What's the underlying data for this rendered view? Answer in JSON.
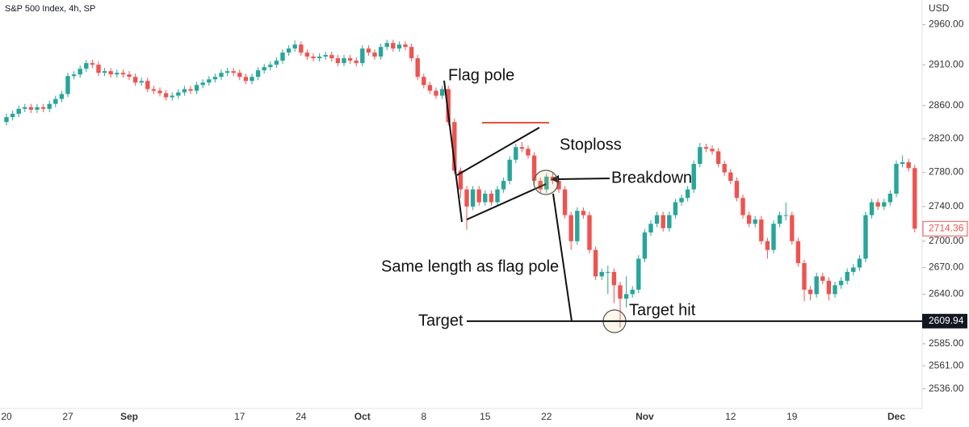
{
  "chart_data": {
    "type": "candlestick",
    "title": "S&P 500 Index, 4h, SP",
    "y_axis_label": "USD",
    "log_scale": true,
    "grid": false,
    "up_color": "#26a69a",
    "down_color": "#ef5350",
    "ylim": [
      2515,
      2991
    ],
    "yticks": [
      {
        "value": 2960,
        "label": "2960.00"
      },
      {
        "value": 2910,
        "label": "2910.00"
      },
      {
        "value": 2860,
        "label": "2860.00"
      },
      {
        "value": 2820,
        "label": "2820.00"
      },
      {
        "value": 2780,
        "label": "2780.00"
      },
      {
        "value": 2740,
        "label": "2740.00"
      },
      {
        "value": 2700,
        "label": "2700.00"
      },
      {
        "value": 2670,
        "label": "2670.00"
      },
      {
        "value": 2640,
        "label": "2640.00"
      },
      {
        "value": 2585,
        "label": "2585.00"
      },
      {
        "value": 2561,
        "label": "2561.00"
      },
      {
        "value": 2536,
        "label": "2536.00"
      }
    ],
    "last_price": {
      "value": 2714.36,
      "label": "2714.36"
    },
    "target_price": {
      "value": 2609.94,
      "label": "2609.94"
    },
    "annotations": {
      "flag_pole": "Flag pole",
      "stoploss": "Stoploss",
      "breakdown": "Breakdown",
      "same_length": "Same length as flag pole",
      "target": "Target",
      "target_hit": "Target hit"
    },
    "categories": [
      "20",
      null,
      null,
      null,
      null,
      null,
      null,
      null,
      null,
      null,
      "27",
      null,
      null,
      null,
      null,
      null,
      null,
      null,
      null,
      null,
      "Sep",
      null,
      null,
      null,
      null,
      null,
      null,
      null,
      null,
      null,
      null,
      null,
      null,
      null,
      null,
      null,
      null,
      null,
      "17",
      null,
      null,
      null,
      null,
      null,
      null,
      null,
      null,
      null,
      "24",
      null,
      null,
      null,
      null,
      null,
      null,
      null,
      null,
      null,
      "Oct",
      null,
      null,
      null,
      null,
      null,
      null,
      null,
      null,
      null,
      "8",
      null,
      null,
      null,
      null,
      null,
      null,
      null,
      null,
      null,
      "15",
      null,
      null,
      null,
      null,
      null,
      null,
      null,
      null,
      null,
      "22",
      null,
      null,
      null,
      null,
      null,
      null,
      null,
      null,
      null,
      null,
      null,
      null,
      null,
      null,
      null,
      "Nov",
      null,
      null,
      null,
      null,
      null,
      null,
      null,
      null,
      null,
      null,
      null,
      null,
      null,
      "12",
      null,
      null,
      null,
      null,
      null,
      null,
      null,
      null,
      null,
      "19",
      null,
      null,
      null,
      null,
      null,
      null,
      null,
      null,
      null,
      null,
      null,
      null,
      null,
      null,
      null,
      null,
      "Dec",
      null,
      null,
      null
    ],
    "open": [
      2840,
      2846,
      2850,
      2856,
      2858,
      2855,
      2858,
      2856,
      2862,
      2868,
      2874,
      2896,
      2898,
      2905,
      2912,
      2910,
      2900,
      2902,
      2898,
      2900,
      2898,
      2895,
      2888,
      2890,
      2880,
      2878,
      2875,
      2870,
      2872,
      2876,
      2880,
      2878,
      2885,
      2888,
      2892,
      2895,
      2900,
      2902,
      2900,
      2895,
      2890,
      2895,
      2903,
      2907,
      2910,
      2915,
      2925,
      2930,
      2935,
      2925,
      2920,
      2918,
      2920,
      2922,
      2918,
      2912,
      2918,
      2915,
      2912,
      2930,
      2925,
      2920,
      2932,
      2937,
      2930,
      2935,
      2932,
      2918,
      2895,
      2885,
      2878,
      2872,
      2880,
      2840,
      2782,
      2760,
      2740,
      2760,
      2745,
      2755,
      2745,
      2760,
      2770,
      2795,
      2810,
      2808,
      2800,
      2770,
      2760,
      2775,
      2770,
      2760,
      2730,
      2700,
      2735,
      2730,
      2690,
      2660,
      2665,
      2665,
      2650,
      2635,
      2640,
      2645,
      2680,
      2710,
      2720,
      2730,
      2715,
      2730,
      2745,
      2750,
      2760,
      2790,
      2810,
      2808,
      2805,
      2790,
      2780,
      2770,
      2750,
      2730,
      2720,
      2725,
      2700,
      2690,
      2720,
      2730,
      2730,
      2700,
      2675,
      2645,
      2640,
      2660,
      2655,
      2640,
      2650,
      2655,
      2665,
      2670,
      2680,
      2730,
      2745,
      2740,
      2745,
      2755,
      2790,
      2792,
      2785
    ],
    "high": [
      2850,
      2854,
      2860,
      2862,
      2862,
      2862,
      2862,
      2866,
      2872,
      2878,
      2900,
      2902,
      2909,
      2916,
      2916,
      2914,
      2906,
      2906,
      2904,
      2904,
      2902,
      2899,
      2894,
      2894,
      2884,
      2882,
      2879,
      2876,
      2880,
      2884,
      2884,
      2889,
      2892,
      2896,
      2899,
      2904,
      2906,
      2906,
      2904,
      2899,
      2899,
      2907,
      2911,
      2914,
      2919,
      2929,
      2934,
      2940,
      2939,
      2929,
      2924,
      2924,
      2926,
      2926,
      2922,
      2922,
      2922,
      2919,
      2934,
      2934,
      2929,
      2936,
      2941,
      2941,
      2939,
      2939,
      2936,
      2922,
      2899,
      2889,
      2882,
      2884,
      2884,
      2844,
      2786,
      2764,
      2764,
      2764,
      2759,
      2759,
      2764,
      2774,
      2799,
      2814,
      2816,
      2812,
      2804,
      2774,
      2779,
      2779,
      2774,
      2764,
      2734,
      2739,
      2739,
      2734,
      2694,
      2669,
      2672,
      2669,
      2654,
      2660,
      2649,
      2684,
      2714,
      2724,
      2734,
      2734,
      2734,
      2749,
      2754,
      2764,
      2794,
      2815,
      2814,
      2812,
      2809,
      2794,
      2784,
      2774,
      2754,
      2734,
      2729,
      2729,
      2704,
      2724,
      2734,
      2745,
      2734,
      2704,
      2679,
      2649,
      2664,
      2664,
      2659,
      2654,
      2659,
      2669,
      2674,
      2684,
      2734,
      2749,
      2749,
      2749,
      2759,
      2794,
      2800,
      2796,
      2789
    ],
    "low": [
      2836,
      2842,
      2846,
      2852,
      2851,
      2851,
      2852,
      2852,
      2858,
      2864,
      2870,
      2892,
      2894,
      2901,
      2906,
      2896,
      2896,
      2894,
      2894,
      2894,
      2891,
      2884,
      2884,
      2876,
      2874,
      2871,
      2866,
      2866,
      2868,
      2872,
      2874,
      2874,
      2881,
      2884,
      2888,
      2891,
      2896,
      2896,
      2891,
      2886,
      2886,
      2891,
      2899,
      2903,
      2906,
      2911,
      2921,
      2926,
      2921,
      2916,
      2914,
      2914,
      2916,
      2914,
      2908,
      2908,
      2911,
      2908,
      2908,
      2921,
      2916,
      2916,
      2928,
      2926,
      2926,
      2928,
      2914,
      2891,
      2881,
      2874,
      2868,
      2868,
      2836,
      2778,
      2750,
      2713,
      2736,
      2741,
      2741,
      2741,
      2741,
      2756,
      2766,
      2791,
      2804,
      2796,
      2766,
      2756,
      2756,
      2766,
      2756,
      2726,
      2690,
      2696,
      2726,
      2686,
      2656,
      2656,
      2640,
      2630,
      2603,
      2625,
      2636,
      2641,
      2676,
      2706,
      2716,
      2711,
      2711,
      2726,
      2741,
      2746,
      2756,
      2786,
      2804,
      2801,
      2786,
      2776,
      2766,
      2746,
      2726,
      2716,
      2716,
      2696,
      2680,
      2686,
      2716,
      2724,
      2696,
      2671,
      2632,
      2633,
      2636,
      2651,
      2633,
      2636,
      2646,
      2651,
      2661,
      2666,
      2676,
      2726,
      2736,
      2736,
      2741,
      2751,
      2786,
      2781,
      2710
    ],
    "close": [
      2846,
      2850,
      2856,
      2858,
      2855,
      2858,
      2856,
      2862,
      2868,
      2874,
      2896,
      2898,
      2905,
      2912,
      2910,
      2900,
      2902,
      2898,
      2900,
      2898,
      2895,
      2888,
      2890,
      2880,
      2878,
      2875,
      2870,
      2872,
      2876,
      2880,
      2878,
      2885,
      2888,
      2892,
      2895,
      2900,
      2902,
      2900,
      2895,
      2890,
      2895,
      2903,
      2907,
      2910,
      2915,
      2925,
      2930,
      2935,
      2925,
      2920,
      2918,
      2920,
      2922,
      2918,
      2912,
      2918,
      2915,
      2912,
      2930,
      2925,
      2920,
      2932,
      2937,
      2930,
      2935,
      2932,
      2918,
      2895,
      2885,
      2878,
      2872,
      2880,
      2840,
      2782,
      2760,
      2740,
      2760,
      2745,
      2755,
      2745,
      2760,
      2770,
      2795,
      2810,
      2808,
      2800,
      2770,
      2760,
      2775,
      2770,
      2760,
      2730,
      2700,
      2735,
      2730,
      2690,
      2660,
      2665,
      2665,
      2650,
      2635,
      2640,
      2645,
      2680,
      2710,
      2720,
      2730,
      2715,
      2730,
      2745,
      2750,
      2760,
      2790,
      2810,
      2808,
      2805,
      2790,
      2780,
      2770,
      2750,
      2730,
      2720,
      2725,
      2700,
      2690,
      2720,
      2730,
      2730,
      2700,
      2675,
      2645,
      2640,
      2660,
      2655,
      2640,
      2650,
      2655,
      2665,
      2670,
      2680,
      2730,
      2745,
      2740,
      2745,
      2755,
      2790,
      2792,
      2785,
      2714.36
    ]
  }
}
